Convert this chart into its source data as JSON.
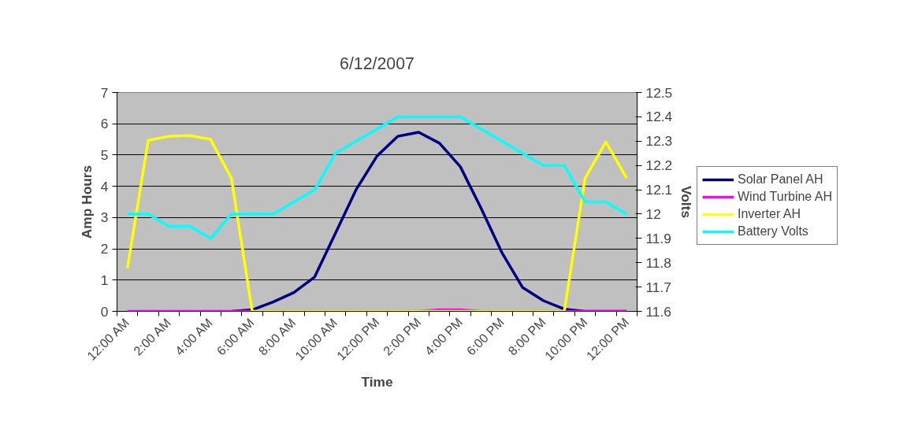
{
  "chart_data": {
    "type": "line",
    "title": "6/12/2007",
    "xlabel": "Time",
    "ylabel": "Amp Hours",
    "y2label": "Volts",
    "categories": [
      "12:00 AM",
      null,
      "2:00 AM",
      null,
      "4:00 AM",
      null,
      "6:00 AM",
      null,
      "8:00 AM",
      null,
      "10:00 AM",
      null,
      "12:00 PM",
      null,
      "2:00 PM",
      null,
      "4:00 PM",
      null,
      "6:00 PM",
      null,
      "8:00 PM",
      null,
      "10:00 PM",
      null,
      "12:00 PM"
    ],
    "series": [
      {
        "name": "Solar Panel AH",
        "color": "#000080",
        "values": [
          null,
          null,
          null,
          null,
          null,
          0,
          0.05,
          0.3,
          0.6,
          1.1,
          2.5,
          3.9,
          4.97,
          5.6,
          5.73,
          5.38,
          4.63,
          3.3,
          1.88,
          0.76,
          0.34,
          0.07,
          0,
          0,
          0
        ]
      },
      {
        "name": "Wind Turbine AH",
        "color": "#ff00ff",
        "values": [
          0,
          0,
          0,
          0,
          0,
          0,
          0,
          0,
          0,
          0,
          0,
          0,
          0,
          0,
          0,
          0.05,
          0.05,
          0,
          0,
          0,
          0,
          0,
          0,
          0,
          0
        ]
      },
      {
        "name": "Inverter AH",
        "color": "#ffff00",
        "values": [
          1.38,
          5.47,
          5.6,
          5.62,
          5.5,
          4.26,
          0,
          0,
          0,
          0,
          0,
          0,
          0,
          0,
          0,
          0,
          0,
          0,
          0,
          0,
          0,
          0,
          4.26,
          5.42,
          4.26
        ]
      },
      {
        "name": "Battery Volts",
        "color": "#00ffff",
        "axis": "y2",
        "values": [
          12.0,
          12.0,
          11.95,
          11.95,
          11.9,
          12.0,
          12.0,
          12.0,
          12.05,
          12.1,
          12.25,
          12.3,
          12.35,
          12.4,
          12.4,
          12.4,
          12.4,
          12.35,
          12.3,
          12.25,
          12.2,
          12.2,
          12.05,
          12.05,
          12.0
        ]
      }
    ],
    "ylim": [
      0,
      7
    ],
    "yticks": [
      0,
      1,
      2,
      3,
      4,
      5,
      6,
      7
    ],
    "y2lim": [
      11.6,
      12.5
    ],
    "y2ticks": [
      11.6,
      11.7,
      11.8,
      11.9,
      12.0,
      12.1,
      12.2,
      12.3,
      12.4,
      12.5
    ],
    "grid": "y",
    "legend": "right"
  }
}
